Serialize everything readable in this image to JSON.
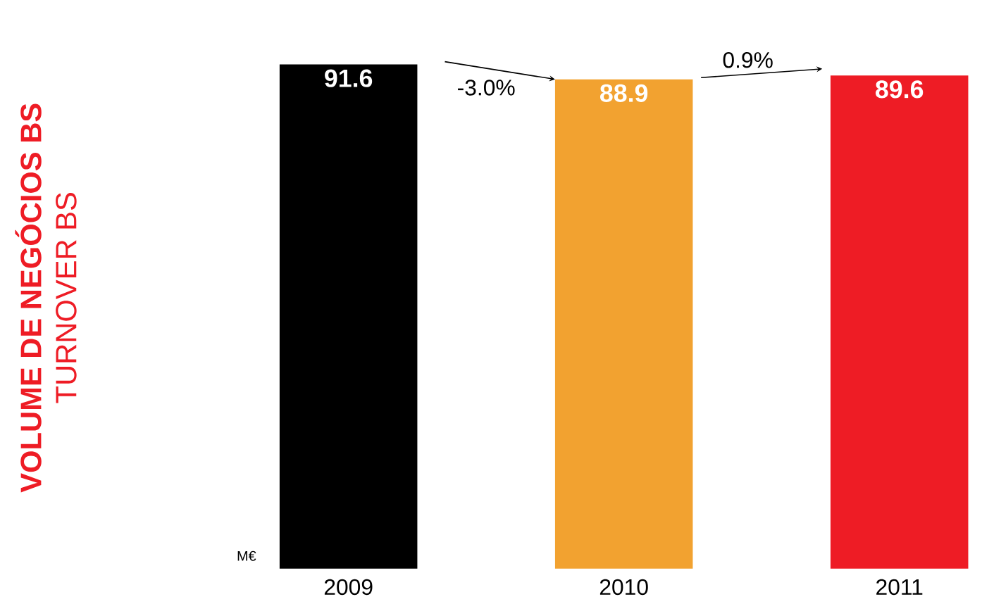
{
  "chart_data": {
    "type": "bar",
    "categories": [
      "2009",
      "2010",
      "2011"
    ],
    "values": [
      91.6,
      88.9,
      89.6
    ],
    "colors": [
      "#000000",
      "#f2a230",
      "#ee1c25"
    ],
    "data_labels": true,
    "annotations": [
      "-3.0%",
      "0.9%",
      "M€",
      "VOLUME DE NEGÓCIOS BS",
      "TURNOVER BS"
    ]
  }
}
